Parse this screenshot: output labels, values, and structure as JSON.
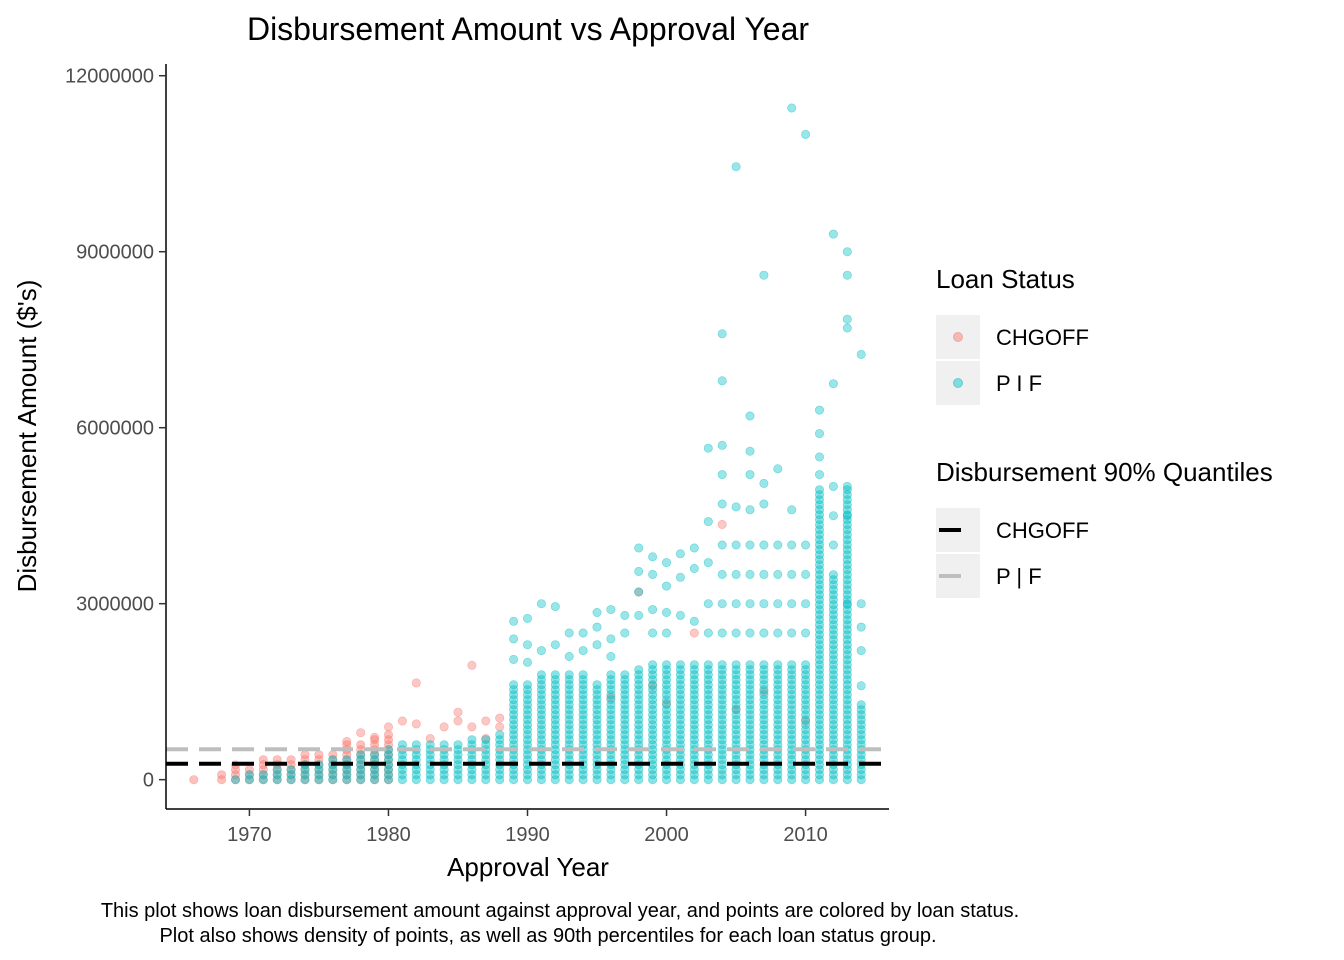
{
  "chart_data": {
    "type": "scatter",
    "title": "Disbursement Amount vs Approval Year",
    "xlabel": "Approval Year",
    "ylabel": "Disbursement Amount ($'s)",
    "xlim": [
      1964,
      2016
    ],
    "ylim": [
      -500000,
      12200000
    ],
    "x_ticks": [
      1970,
      1980,
      1990,
      2000,
      2010
    ],
    "y_ticks": [
      0,
      3000000,
      6000000,
      9000000,
      12000000
    ],
    "y_tick_labels": [
      "0",
      "3000000",
      "6000000",
      "9000000",
      "12000000"
    ],
    "grid": false,
    "legend_position": "right",
    "caption_lines": [
      "This plot shows loan disbursement amount against approval year, and points are colored by loan status.",
      "Plot also shows density of points, as well as 90th percentiles for each loan status group."
    ],
    "legends": [
      {
        "title": "Loan Status",
        "kind": "point",
        "items": [
          {
            "label": "CHGOFF",
            "color": "#F8766D"
          },
          {
            "label": "P I F",
            "color": "#00BFC4"
          }
        ]
      },
      {
        "title": "Disbursement 90% Quantiles",
        "kind": "line",
        "items": [
          {
            "label": "CHGOFF",
            "color": "#000000",
            "dash": true
          },
          {
            "label": "P | F",
            "color": "#bebebe",
            "dash": true
          }
        ]
      }
    ],
    "series": [
      {
        "name": "CHGOFF",
        "color": "#F8766D",
        "column_max": [
          [
            1966,
            80000
          ],
          [
            1968,
            100000
          ],
          [
            1969,
            250000
          ],
          [
            1970,
            200000
          ],
          [
            1971,
            350000
          ],
          [
            1972,
            400000
          ],
          [
            1973,
            420000
          ],
          [
            1974,
            480000
          ],
          [
            1975,
            450000
          ],
          [
            1976,
            500000
          ],
          [
            1977,
            600000
          ],
          [
            1978,
            650000
          ],
          [
            1979,
            700000
          ],
          [
            1980,
            800000
          ]
        ],
        "outliers": [
          [
            1969,
            250000
          ],
          [
            1977,
            650000
          ],
          [
            1978,
            800000
          ],
          [
            1979,
            720000
          ],
          [
            1980,
            900000
          ],
          [
            1981,
            1000000
          ],
          [
            1982,
            1650000
          ],
          [
            1982,
            950000
          ],
          [
            1983,
            700000
          ],
          [
            1984,
            900000
          ],
          [
            1985,
            1150000
          ],
          [
            1985,
            1000000
          ],
          [
            1986,
            1950000
          ],
          [
            1986,
            900000
          ],
          [
            1987,
            1000000
          ],
          [
            1987,
            700000
          ],
          [
            1988,
            1050000
          ],
          [
            1988,
            900000
          ],
          [
            2004,
            4350000
          ],
          [
            1998,
            3200000
          ],
          [
            2002,
            2500000
          ],
          [
            1999,
            1600000
          ],
          [
            2005,
            1200000
          ],
          [
            2007,
            1500000
          ],
          [
            2010,
            1000000
          ],
          [
            1996,
            1400000
          ],
          [
            2000,
            1300000
          ]
        ]
      },
      {
        "name": "P I F",
        "color": "#00BFC4",
        "column_max": [
          [
            1969,
            50000
          ],
          [
            1970,
            100000
          ],
          [
            1971,
            150000
          ],
          [
            1972,
            200000
          ],
          [
            1973,
            250000
          ],
          [
            1974,
            280000
          ],
          [
            1975,
            300000
          ],
          [
            1976,
            350000
          ],
          [
            1977,
            400000
          ],
          [
            1978,
            450000
          ],
          [
            1979,
            500000
          ],
          [
            1980,
            550000
          ],
          [
            1981,
            600000
          ],
          [
            1982,
            600000
          ],
          [
            1983,
            620000
          ],
          [
            1984,
            620000
          ],
          [
            1985,
            650000
          ],
          [
            1986,
            700000
          ],
          [
            1987,
            750000
          ],
          [
            1988,
            800000
          ],
          [
            1989,
            1700000
          ],
          [
            1990,
            1700000
          ],
          [
            1991,
            1800000
          ],
          [
            1992,
            1800000
          ],
          [
            1993,
            1800000
          ],
          [
            1994,
            1800000
          ],
          [
            1995,
            1700000
          ],
          [
            1996,
            1800000
          ],
          [
            1997,
            1800000
          ],
          [
            1998,
            1900000
          ],
          [
            1999,
            2000000
          ],
          [
            2000,
            2000000
          ],
          [
            2001,
            2000000
          ],
          [
            2002,
            2000000
          ],
          [
            2003,
            2000000
          ],
          [
            2004,
            2000000
          ],
          [
            2005,
            2000000
          ],
          [
            2006,
            2000000
          ],
          [
            2007,
            2000000
          ],
          [
            2008,
            2000000
          ],
          [
            2009,
            2000000
          ],
          [
            2010,
            2000000
          ],
          [
            2011,
            5000000
          ],
          [
            2012,
            3500000
          ],
          [
            2013,
            5000000
          ],
          [
            2014,
            1300000
          ]
        ],
        "outliers": [
          [
            1989,
            2700000
          ],
          [
            1989,
            2400000
          ],
          [
            1989,
            2050000
          ],
          [
            1990,
            2750000
          ],
          [
            1990,
            2300000
          ],
          [
            1990,
            2000000
          ],
          [
            1991,
            3000000
          ],
          [
            1991,
            2200000
          ],
          [
            1992,
            2950000
          ],
          [
            1992,
            2300000
          ],
          [
            1993,
            2500000
          ],
          [
            1993,
            2100000
          ],
          [
            1994,
            2500000
          ],
          [
            1994,
            2200000
          ],
          [
            1995,
            2850000
          ],
          [
            1995,
            2600000
          ],
          [
            1995,
            2300000
          ],
          [
            1996,
            2900000
          ],
          [
            1996,
            2400000
          ],
          [
            1996,
            2100000
          ],
          [
            1997,
            2800000
          ],
          [
            1997,
            2500000
          ],
          [
            1998,
            3950000
          ],
          [
            1998,
            3550000
          ],
          [
            1998,
            3200000
          ],
          [
            1998,
            2800000
          ],
          [
            1999,
            3800000
          ],
          [
            1999,
            3500000
          ],
          [
            1999,
            2900000
          ],
          [
            1999,
            2500000
          ],
          [
            2000,
            3700000
          ],
          [
            2000,
            3300000
          ],
          [
            2000,
            2850000
          ],
          [
            2000,
            2500000
          ],
          [
            2001,
            3850000
          ],
          [
            2001,
            3450000
          ],
          [
            2001,
            2800000
          ],
          [
            2002,
            3950000
          ],
          [
            2002,
            3600000
          ],
          [
            2002,
            2700000
          ],
          [
            2003,
            5650000
          ],
          [
            2003,
            4400000
          ],
          [
            2003,
            3700000
          ],
          [
            2003,
            3000000
          ],
          [
            2003,
            2500000
          ],
          [
            2004,
            7600000
          ],
          [
            2004,
            6800000
          ],
          [
            2004,
            5700000
          ],
          [
            2004,
            5200000
          ],
          [
            2004,
            4700000
          ],
          [
            2004,
            4000000
          ],
          [
            2004,
            3500000
          ],
          [
            2004,
            3000000
          ],
          [
            2004,
            2500000
          ],
          [
            2005,
            10450000
          ],
          [
            2005,
            4650000
          ],
          [
            2005,
            4000000
          ],
          [
            2005,
            3500000
          ],
          [
            2005,
            3000000
          ],
          [
            2005,
            2500000
          ],
          [
            2006,
            6200000
          ],
          [
            2006,
            5600000
          ],
          [
            2006,
            5200000
          ],
          [
            2006,
            4600000
          ],
          [
            2006,
            4000000
          ],
          [
            2006,
            3500000
          ],
          [
            2006,
            3000000
          ],
          [
            2006,
            2500000
          ],
          [
            2007,
            8600000
          ],
          [
            2007,
            5050000
          ],
          [
            2007,
            4700000
          ],
          [
            2007,
            4000000
          ],
          [
            2007,
            3500000
          ],
          [
            2007,
            3000000
          ],
          [
            2007,
            2500000
          ],
          [
            2008,
            5300000
          ],
          [
            2008,
            4000000
          ],
          [
            2008,
            3500000
          ],
          [
            2008,
            3000000
          ],
          [
            2008,
            2500000
          ],
          [
            2009,
            11450000
          ],
          [
            2009,
            4600000
          ],
          [
            2009,
            4000000
          ],
          [
            2009,
            3500000
          ],
          [
            2009,
            3000000
          ],
          [
            2009,
            2500000
          ],
          [
            2010,
            11000000
          ],
          [
            2010,
            4000000
          ],
          [
            2010,
            3500000
          ],
          [
            2010,
            3000000
          ],
          [
            2010,
            2500000
          ],
          [
            2011,
            6300000
          ],
          [
            2011,
            5900000
          ],
          [
            2011,
            5500000
          ],
          [
            2011,
            5200000
          ],
          [
            2012,
            9300000
          ],
          [
            2012,
            6750000
          ],
          [
            2012,
            5000000
          ],
          [
            2012,
            4500000
          ],
          [
            2012,
            4000000
          ],
          [
            2013,
            9000000
          ],
          [
            2013,
            8600000
          ],
          [
            2013,
            7850000
          ],
          [
            2013,
            7700000
          ],
          [
            2013,
            5000000
          ],
          [
            2013,
            4500000
          ],
          [
            2013,
            3000000
          ],
          [
            2014,
            7250000
          ],
          [
            2014,
            3000000
          ],
          [
            2014,
            2600000
          ],
          [
            2014,
            2200000
          ],
          [
            2014,
            1600000
          ]
        ]
      }
    ],
    "hlines": [
      {
        "name": "CHGOFF",
        "y": 270000,
        "color": "#000000"
      },
      {
        "name": "P | F",
        "y": 520000,
        "color": "#bebebe"
      }
    ]
  }
}
